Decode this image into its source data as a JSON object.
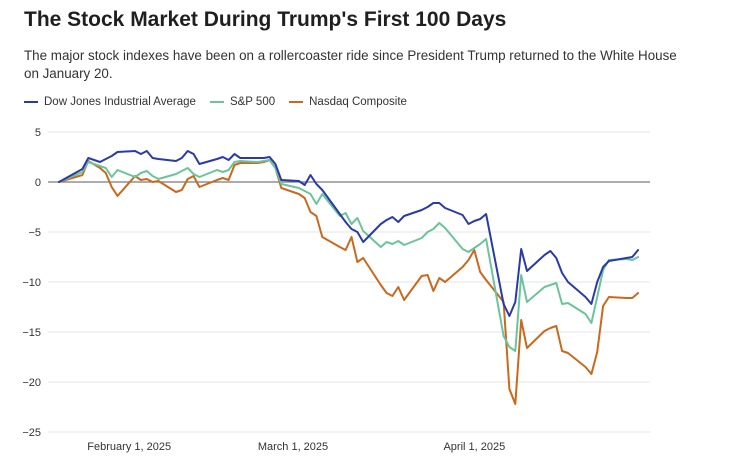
{
  "title": "The Stock Market During Trump's First 100 Days",
  "subtitle": "The major stock indexes have been on a rollercoaster ride since President Trump returned to the White House on January 20.",
  "chart_data": {
    "type": "line",
    "title": "The Stock Market During Trump's First 100 Days",
    "xlabel": "",
    "ylabel": "",
    "ylim": [
      -25,
      5
    ],
    "yticks": [
      5,
      0,
      -5,
      -10,
      -15,
      -20,
      -25
    ],
    "grid": true,
    "legend_position": "top-left",
    "x_unit": "days since January 20, 2025",
    "xlim": [
      0,
      100
    ],
    "xticks": [
      {
        "day": 12,
        "label": "February 1, 2025"
      },
      {
        "day": 40,
        "label": "March 1, 2025"
      },
      {
        "day": 71,
        "label": "April 1, 2025"
      }
    ],
    "x": [
      0,
      4,
      5,
      7,
      8,
      9,
      10,
      13,
      14,
      15,
      16,
      17,
      20,
      21,
      22,
      23,
      24,
      27,
      28,
      29,
      30,
      31,
      34,
      35,
      36,
      37,
      38,
      41,
      42,
      43,
      44,
      45,
      48,
      49,
      50,
      51,
      52,
      55,
      56,
      57,
      58,
      59,
      62,
      63,
      64,
      65,
      66,
      69,
      70,
      71,
      72,
      73,
      76,
      77,
      78,
      79,
      80,
      83,
      84,
      85,
      86,
      87,
      90,
      91,
      92,
      93,
      94,
      97,
      98,
      99
    ],
    "series": [
      {
        "name": "Dow Jones Industrial Average",
        "color": "#2b3aa8",
        "values": [
          0,
          1.3,
          2.4,
          2.0,
          2.3,
          2.6,
          3.0,
          3.1,
          2.8,
          3.1,
          2.4,
          2.3,
          2.1,
          2.4,
          3.1,
          2.8,
          1.8,
          2.3,
          2.5,
          2.2,
          2.8,
          2.4,
          2.4,
          2.4,
          2.5,
          1.8,
          0.2,
          0.1,
          -0.3,
          0.7,
          -0.2,
          -0.8,
          -3.2,
          -4.0,
          -4.7,
          -5.0,
          -6.0,
          -4.2,
          -3.8,
          -3.5,
          -4.0,
          -3.4,
          -2.8,
          -2.5,
          -2.1,
          -2.1,
          -2.6,
          -3.3,
          -4.2,
          -3.9,
          -3.7,
          -3.2,
          -12.2,
          -13.4,
          -12.0,
          -6.7,
          -8.9,
          -7.3,
          -6.9,
          -7.6,
          -9.1,
          -10.0,
          -11.5,
          -12.2,
          -10.0,
          -8.5,
          -7.9,
          -7.6,
          -7.5,
          -6.8
        ]
      },
      {
        "name": "S&P 500",
        "color": "#6cc49a",
        "values": [
          0,
          1.0,
          2.0,
          1.6,
          1.4,
          0.5,
          1.2,
          0.5,
          0.9,
          1.1,
          0.6,
          0.3,
          0.8,
          1.1,
          1.4,
          0.8,
          0.5,
          1.2,
          1.0,
          1.2,
          2.0,
          2.1,
          2.0,
          2.1,
          2.2,
          1.4,
          -0.2,
          -0.6,
          -0.9,
          -1.2,
          -2.2,
          -1.2,
          -3.4,
          -3.1,
          -4.2,
          -3.6,
          -4.9,
          -6.5,
          -6.0,
          -6.2,
          -5.9,
          -6.3,
          -5.6,
          -5.0,
          -4.7,
          -4.1,
          -4.6,
          -6.7,
          -7.0,
          -6.6,
          -6.2,
          -5.7,
          -15.4,
          -16.5,
          -16.9,
          -9.3,
          -12.0,
          -10.5,
          -10.3,
          -10.1,
          -12.2,
          -12.1,
          -13.2,
          -14.1,
          -11.5,
          -8.8,
          -7.8,
          -7.7,
          -7.8,
          -7.5
        ]
      },
      {
        "name": "Nasdaq Composite",
        "color": "#c9691d",
        "values": [
          0,
          0.7,
          2.1,
          1.4,
          0.9,
          -0.5,
          -1.4,
          0.6,
          0.2,
          0.3,
          0.0,
          0.1,
          -1.0,
          -0.8,
          0.3,
          0.6,
          -0.5,
          0.2,
          0.4,
          0.2,
          1.7,
          1.9,
          1.9,
          2.0,
          2.2,
          1.4,
          -0.6,
          -1.2,
          -1.6,
          -3.0,
          -3.4,
          -5.5,
          -6.5,
          -6.8,
          -5.5,
          -8.0,
          -7.6,
          -10.3,
          -11.1,
          -11.4,
          -10.5,
          -11.8,
          -9.4,
          -9.3,
          -10.9,
          -9.6,
          -10.0,
          -8.5,
          -7.8,
          -6.8,
          -9.0,
          -9.8,
          -12.0,
          -20.7,
          -22.2,
          -13.8,
          -16.6,
          -14.9,
          -14.6,
          -14.4,
          -16.9,
          -17.1,
          -18.5,
          -19.2,
          -17.0,
          -12.4,
          -11.5,
          -11.6,
          -11.6,
          -11.1
        ]
      }
    ]
  }
}
